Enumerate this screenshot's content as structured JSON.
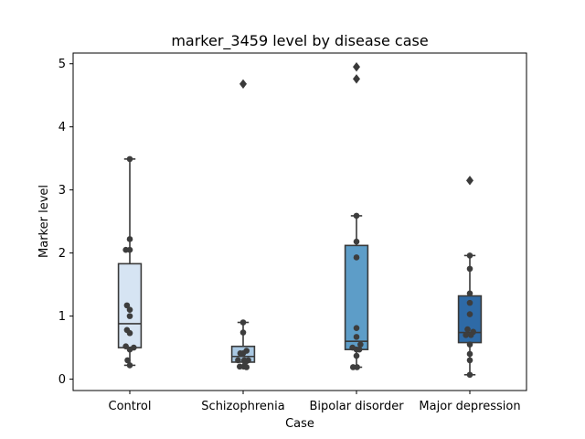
{
  "chart_data": {
    "type": "box",
    "title": "marker_3459 level by disease case",
    "xlabel": "Case",
    "ylabel": "Marker level",
    "ylim": [
      -0.18,
      5.17
    ],
    "yticks": [
      0,
      1,
      2,
      3,
      4,
      5
    ],
    "grid": false,
    "categories": [
      "Control",
      "Schizophrenia",
      "Bipolar disorder",
      "Major depression"
    ],
    "colors": [
      "#d6e4f3",
      "#a9c8e2",
      "#5d9dc8",
      "#2e6aa6"
    ],
    "boxes": [
      {
        "q1": 0.5,
        "median": 0.88,
        "q3": 1.83,
        "whisker_low": 0.22,
        "whisker_high": 3.49,
        "outliers": []
      },
      {
        "q1": 0.27,
        "median": 0.36,
        "q3": 0.52,
        "whisker_low": 0.18,
        "whisker_high": 0.9,
        "outliers": [
          4.68
        ]
      },
      {
        "q1": 0.47,
        "median": 0.6,
        "q3": 2.12,
        "whisker_low": 0.19,
        "whisker_high": 2.59,
        "outliers": [
          4.76,
          4.95
        ]
      },
      {
        "q1": 0.58,
        "median": 0.74,
        "q3": 1.32,
        "whisker_low": 0.07,
        "whisker_high": 1.96,
        "outliers": [
          3.15
        ]
      }
    ],
    "points": [
      [
        [
          3.49,
          0
        ],
        [
          2.22,
          0
        ],
        [
          2.05,
          -0.35
        ],
        [
          2.05,
          0
        ],
        [
          1.17,
          -0.25
        ],
        [
          1.1,
          0
        ],
        [
          1.0,
          0
        ],
        [
          0.78,
          -0.25
        ],
        [
          0.73,
          0
        ],
        [
          0.52,
          -0.35
        ],
        [
          0.5,
          0.35
        ],
        [
          0.47,
          0
        ],
        [
          0.3,
          -0.2
        ],
        [
          0.22,
          0
        ]
      ],
      [
        [
          0.9,
          0
        ],
        [
          0.74,
          0
        ],
        [
          0.45,
          0.3
        ],
        [
          0.41,
          0
        ],
        [
          0.41,
          -0.25
        ],
        [
          0.3,
          -0.45
        ],
        [
          0.3,
          0.1
        ],
        [
          0.3,
          0.45
        ],
        [
          0.28,
          0.25
        ],
        [
          0.2,
          -0.3
        ],
        [
          0.2,
          0.05
        ],
        [
          0.19,
          0.3
        ]
      ],
      [
        [
          2.59,
          0
        ],
        [
          2.18,
          0
        ],
        [
          1.93,
          0
        ],
        [
          0.81,
          0
        ],
        [
          0.67,
          0
        ],
        [
          0.55,
          0.35
        ],
        [
          0.5,
          -0.35
        ],
        [
          0.47,
          0
        ],
        [
          0.47,
          0.25
        ],
        [
          0.37,
          0
        ],
        [
          0.19,
          -0.3
        ],
        [
          0.19,
          0.05
        ]
      ],
      [
        [
          1.96,
          0
        ],
        [
          1.75,
          0
        ],
        [
          1.36,
          0
        ],
        [
          1.21,
          0
        ],
        [
          1.03,
          0
        ],
        [
          0.79,
          -0.2
        ],
        [
          0.75,
          0.3
        ],
        [
          0.7,
          -0.35
        ],
        [
          0.7,
          0.1
        ],
        [
          0.55,
          0
        ],
        [
          0.4,
          0
        ],
        [
          0.3,
          0
        ],
        [
          0.07,
          0
        ]
      ]
    ]
  }
}
